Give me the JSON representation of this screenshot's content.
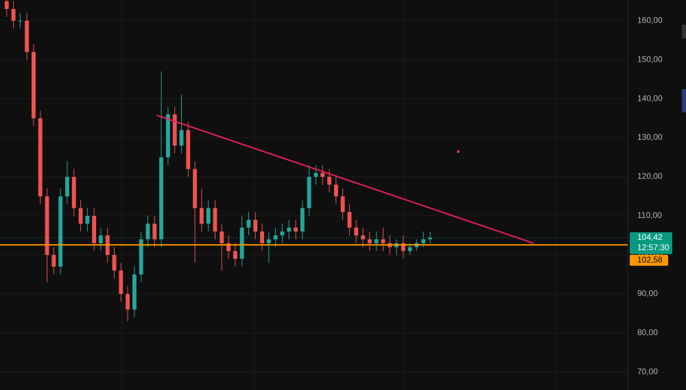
{
  "chart_data": {
    "type": "candlestick",
    "x": [
      0,
      1,
      2,
      3,
      4,
      5,
      6,
      7,
      8,
      9,
      10,
      11,
      12,
      13,
      14,
      15,
      16,
      17,
      18,
      19,
      20,
      21,
      22,
      23,
      24,
      25,
      26,
      27,
      28,
      29,
      30,
      31,
      32,
      33,
      34,
      35,
      36,
      37,
      38,
      39,
      40,
      41,
      42,
      43,
      44,
      45,
      46,
      47,
      48,
      49,
      50,
      51,
      52,
      53,
      54,
      55,
      56,
      57,
      58,
      59,
      60,
      61,
      62,
      63
    ],
    "open": [
      165,
      163,
      160,
      160,
      152,
      135,
      115,
      100,
      97,
      115,
      120,
      112,
      108,
      110,
      103,
      105,
      100,
      96,
      90,
      86,
      95,
      104,
      108,
      104,
      125,
      136,
      128,
      132,
      122,
      112,
      108,
      112,
      106,
      103,
      101,
      99,
      107,
      109,
      106,
      103,
      104,
      105,
      106,
      107,
      106,
      112,
      120,
      121,
      120,
      118,
      115,
      111,
      107,
      105,
      104,
      103,
      104,
      103,
      102,
      103,
      101,
      102,
      103,
      104
    ],
    "high": [
      166,
      165,
      162,
      162,
      154,
      137,
      117,
      102,
      117,
      124,
      122,
      114,
      112,
      112,
      107,
      107,
      102,
      98,
      92,
      97,
      106,
      110,
      110,
      147,
      138,
      138,
      141,
      134,
      124,
      117,
      114,
      114,
      108,
      105,
      103,
      110,
      111,
      111,
      108,
      106,
      107,
      108,
      109,
      109,
      114,
      123,
      123,
      123,
      122,
      120,
      117,
      113,
      109,
      107,
      106,
      106,
      107,
      105,
      104,
      105,
      103,
      104,
      106,
      106
    ],
    "low": [
      161,
      158,
      158,
      150,
      133,
      113,
      93,
      95,
      95,
      113,
      110,
      106,
      106,
      101,
      101,
      98,
      94,
      88,
      83,
      84,
      93,
      102,
      102,
      102,
      123,
      126,
      126,
      120,
      98,
      106,
      106,
      104,
      96,
      99,
      97,
      97,
      105,
      104,
      101,
      98,
      102,
      103,
      104,
      104,
      104,
      110,
      118,
      118,
      116,
      113,
      109,
      105,
      103,
      102,
      101,
      101,
      101,
      100,
      100,
      99,
      100,
      101,
      102,
      103
    ],
    "close": [
      163,
      160,
      160,
      152,
      135,
      115,
      100,
      97,
      115,
      120,
      112,
      108,
      110,
      103,
      105,
      100,
      96,
      90,
      86,
      95,
      104,
      108,
      104,
      125,
      136,
      128,
      132,
      122,
      112,
      108,
      112,
      106,
      103,
      101,
      99,
      107,
      109,
      106,
      103,
      104,
      105,
      106,
      107,
      106,
      112,
      120,
      121,
      120,
      118,
      115,
      111,
      107,
      105,
      104,
      103,
      104,
      103,
      102,
      103,
      101,
      102,
      103,
      104,
      104.42
    ],
    "up_color": "#26a69a",
    "down_color": "#ef5350",
    "xlim": [
      -1,
      92.4
    ],
    "ylim": [
      65.4,
      165.3
    ],
    "yticks": [
      {
        "value": 160,
        "label": "160,00"
      },
      {
        "value": 150,
        "label": "150,00"
      },
      {
        "value": 140,
        "label": "140,00"
      },
      {
        "value": 130,
        "label": "130,00"
      },
      {
        "value": 120,
        "label": "120,00"
      },
      {
        "value": 110,
        "label": "110,00"
      },
      {
        "value": 100,
        "label": "100,00"
      },
      {
        "value": 90,
        "label": "90,00"
      },
      {
        "value": 80,
        "label": "80,00"
      },
      {
        "value": 70,
        "label": "70,00"
      }
    ],
    "grid": true,
    "last_price": {
      "value": 104.42,
      "label": "104,42",
      "countdown": "12:57:30",
      "color": "#089981"
    },
    "price_line": {
      "value": 102.58,
      "label": "102,58",
      "color": "#ff9800"
    },
    "trendline": {
      "x": [
        22.3,
        78.4
      ],
      "y": [
        135.8,
        103.0
      ],
      "color": "#e91e63"
    }
  }
}
